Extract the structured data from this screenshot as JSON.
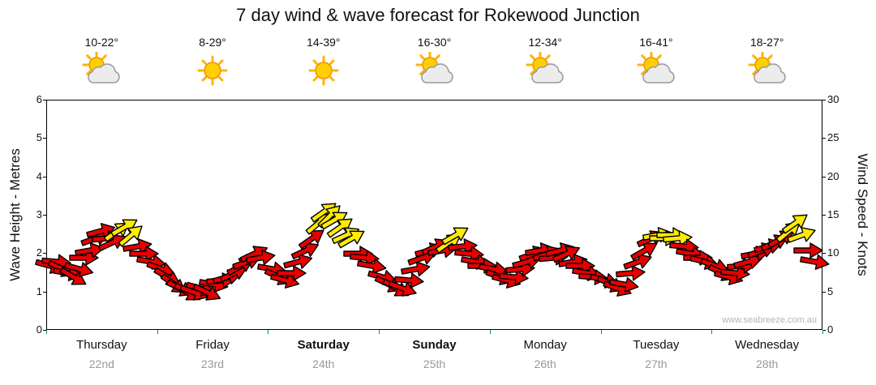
{
  "title": "7 day wind & wave forecast for Rokewood Junction",
  "watermark": "www.seabreeze.com.au",
  "days": [
    {
      "name": "Thursday",
      "date": "22nd",
      "temp_range": "10-22°",
      "icon": "partly-cloudy",
      "bold": false
    },
    {
      "name": "Friday",
      "date": "23rd",
      "temp_range": "8-29°",
      "icon": "sunny",
      "bold": false
    },
    {
      "name": "Saturday",
      "date": "24th",
      "temp_range": "14-39°",
      "icon": "sunny",
      "bold": true
    },
    {
      "name": "Sunday",
      "date": "25th",
      "temp_range": "16-30°",
      "icon": "partly-cloudy",
      "bold": true
    },
    {
      "name": "Monday",
      "date": "26th",
      "temp_range": "12-34°",
      "icon": "partly-cloudy",
      "bold": false
    },
    {
      "name": "Tuesday",
      "date": "27th",
      "temp_range": "16-41°",
      "icon": "partly-cloudy",
      "bold": false
    },
    {
      "name": "Wednesday",
      "date": "28th",
      "temp_range": "18-27°",
      "icon": "partly-cloudy",
      "bold": false
    }
  ],
  "left_axis": {
    "label": "Wave Height - Metres",
    "min": 0,
    "max": 6,
    "ticks": [
      0,
      1,
      2,
      3,
      4,
      5,
      6
    ]
  },
  "right_axis": {
    "label": "Wind Speed - Knots",
    "min": 0,
    "max": 30,
    "ticks": [
      0,
      5,
      10,
      15,
      20,
      25,
      30
    ]
  },
  "colors": {
    "arrow_red": "#e60000",
    "arrow_yellow": "#ffec00",
    "arrow_outline": "#000000",
    "bottom_tick": "#008b8b"
  },
  "chart_data": {
    "type": "wind-arrows",
    "x_range_days": [
      0,
      7
    ],
    "x_tick_days": [
      "Thursday 22nd",
      "Friday 23rd",
      "Saturday 24th",
      "Sunday 25th",
      "Monday 26th",
      "Tuesday 27th",
      "Wednesday 28th"
    ],
    "wave_scale_metres": [
      0,
      6
    ],
    "wind_scale_knots": [
      0,
      30
    ],
    "arrows_format": [
      "x_day_0_to_7",
      "wind_speed_knots",
      "color r=red y=yellow",
      "direction_deg_cw_from_east"
    ],
    "arrows": [
      [
        0.03,
        8.5,
        "r",
        15
      ],
      [
        0.085,
        9,
        "r",
        5
      ],
      [
        0.14,
        8,
        "r",
        25
      ],
      [
        0.19,
        7.5,
        "r",
        10
      ],
      [
        0.24,
        7,
        "r",
        30
      ],
      [
        0.29,
        8,
        "r",
        15
      ],
      [
        0.34,
        9.5,
        "r",
        0
      ],
      [
        0.39,
        10.5,
        "r",
        -10
      ],
      [
        0.44,
        12,
        "r",
        -20
      ],
      [
        0.49,
        13,
        "r",
        -15
      ],
      [
        0.54,
        12,
        "r",
        -5
      ],
      [
        0.59,
        11.5,
        "r",
        -25
      ],
      [
        0.64,
        13,
        "y",
        -35
      ],
      [
        0.7,
        13.5,
        "y",
        -30
      ],
      [
        0.76,
        12.5,
        "y",
        -40
      ],
      [
        0.82,
        11,
        "r",
        -10
      ],
      [
        0.88,
        10,
        "r",
        0
      ],
      [
        0.94,
        9,
        "r",
        10
      ],
      [
        1.03,
        8,
        "r",
        20
      ],
      [
        1.09,
        7,
        "r",
        30
      ],
      [
        1.15,
        6,
        "r",
        35
      ],
      [
        1.21,
        5.5,
        "r",
        25
      ],
      [
        1.27,
        5,
        "r",
        30
      ],
      [
        1.33,
        5,
        "r",
        20
      ],
      [
        1.39,
        5.5,
        "r",
        15
      ],
      [
        1.45,
        5,
        "r",
        25
      ],
      [
        1.51,
        6,
        "r",
        10
      ],
      [
        1.57,
        6.5,
        "r",
        -5
      ],
      [
        1.63,
        7,
        "r",
        -15
      ],
      [
        1.69,
        7.5,
        "r",
        -25
      ],
      [
        1.75,
        8.5,
        "r",
        -30
      ],
      [
        1.81,
        9,
        "r",
        -20
      ],
      [
        1.87,
        10,
        "r",
        -25
      ],
      [
        1.93,
        9.5,
        "r",
        -10
      ],
      [
        2.03,
        8,
        "r",
        10
      ],
      [
        2.09,
        7,
        "r",
        25
      ],
      [
        2.15,
        6.5,
        "r",
        15
      ],
      [
        2.21,
        7.5,
        "r",
        0
      ],
      [
        2.27,
        9,
        "r",
        -15
      ],
      [
        2.33,
        10.5,
        "r",
        -25
      ],
      [
        2.39,
        12,
        "r",
        -35
      ],
      [
        2.45,
        14,
        "y",
        -40
      ],
      [
        2.5,
        15.5,
        "y",
        -35
      ],
      [
        2.55,
        15,
        "y",
        -45
      ],
      [
        2.6,
        14.5,
        "y",
        -30
      ],
      [
        2.65,
        13.5,
        "y",
        -35
      ],
      [
        2.7,
        12.5,
        "y",
        -25
      ],
      [
        2.75,
        12,
        "y",
        -30
      ],
      [
        2.81,
        10,
        "r",
        0
      ],
      [
        2.87,
        9.5,
        "r",
        5
      ],
      [
        2.93,
        8.5,
        "r",
        10
      ],
      [
        3.03,
        7,
        "r",
        15
      ],
      [
        3.09,
        6,
        "r",
        25
      ],
      [
        3.15,
        5.5,
        "r",
        30
      ],
      [
        3.21,
        5.5,
        "r",
        20
      ],
      [
        3.27,
        6.5,
        "r",
        5
      ],
      [
        3.33,
        8,
        "r",
        -10
      ],
      [
        3.39,
        9.5,
        "r",
        -20
      ],
      [
        3.45,
        10.5,
        "r",
        -15
      ],
      [
        3.51,
        11,
        "r",
        -25
      ],
      [
        3.57,
        10.5,
        "r",
        -10
      ],
      [
        3.63,
        11.5,
        "y",
        -35
      ],
      [
        3.69,
        12.5,
        "y",
        -30
      ],
      [
        3.75,
        11,
        "r",
        -5
      ],
      [
        3.81,
        10,
        "r",
        5
      ],
      [
        3.87,
        9,
        "r",
        10
      ],
      [
        3.93,
        8.5,
        "r",
        0
      ],
      [
        4.03,
        8,
        "r",
        10
      ],
      [
        4.09,
        7,
        "r",
        20
      ],
      [
        4.15,
        6.5,
        "r",
        15
      ],
      [
        4.21,
        7,
        "r",
        5
      ],
      [
        4.27,
        8,
        "r",
        -5
      ],
      [
        4.33,
        9,
        "r",
        -15
      ],
      [
        4.39,
        10,
        "r",
        -20
      ],
      [
        4.45,
        10.5,
        "r",
        -10
      ],
      [
        4.51,
        10,
        "r",
        -20
      ],
      [
        4.57,
        9.5,
        "r",
        -5
      ],
      [
        4.63,
        10.5,
        "r",
        -15
      ],
      [
        4.69,
        10,
        "r",
        -25
      ],
      [
        4.75,
        9,
        "r",
        -10
      ],
      [
        4.81,
        8.5,
        "r",
        0
      ],
      [
        4.87,
        7.5,
        "r",
        10
      ],
      [
        4.93,
        7,
        "r",
        5
      ],
      [
        5.03,
        6.5,
        "r",
        15
      ],
      [
        5.09,
        6,
        "r",
        25
      ],
      [
        5.15,
        5.5,
        "r",
        20
      ],
      [
        5.21,
        6,
        "r",
        10
      ],
      [
        5.27,
        7.5,
        "r",
        -5
      ],
      [
        5.33,
        9,
        "r",
        -20
      ],
      [
        5.39,
        10.5,
        "r",
        -30
      ],
      [
        5.45,
        12,
        "r",
        -25
      ],
      [
        5.51,
        12.5,
        "y",
        -10
      ],
      [
        5.57,
        12,
        "y",
        0
      ],
      [
        5.63,
        12.5,
        "y",
        0
      ],
      [
        5.69,
        12,
        "y",
        -5
      ],
      [
        5.75,
        11,
        "r",
        5
      ],
      [
        5.81,
        10,
        "r",
        10
      ],
      [
        5.87,
        9.5,
        "r",
        0
      ],
      [
        5.93,
        9,
        "r",
        15
      ],
      [
        6.03,
        8.5,
        "r",
        20
      ],
      [
        6.09,
        7.5,
        "r",
        25
      ],
      [
        6.15,
        7,
        "r",
        15
      ],
      [
        6.21,
        7.5,
        "r",
        5
      ],
      [
        6.27,
        8.5,
        "r",
        -5
      ],
      [
        6.33,
        9,
        "r",
        -15
      ],
      [
        6.39,
        10,
        "r",
        -10
      ],
      [
        6.45,
        10.5,
        "r",
        -20
      ],
      [
        6.51,
        11,
        "r",
        -15
      ],
      [
        6.57,
        11.5,
        "r",
        -25
      ],
      [
        6.63,
        12,
        "r",
        -30
      ],
      [
        6.69,
        13,
        "y",
        -40
      ],
      [
        6.75,
        14,
        "y",
        -35
      ],
      [
        6.81,
        12.5,
        "y",
        -20
      ],
      [
        6.87,
        10.5,
        "r",
        0
      ],
      [
        6.93,
        9,
        "r",
        10
      ]
    ]
  }
}
